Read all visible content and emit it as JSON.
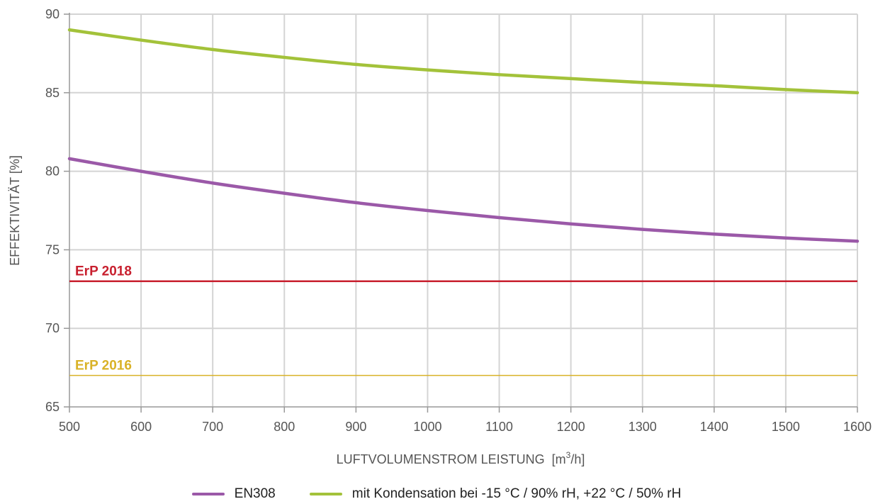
{
  "chart_data": {
    "type": "line",
    "xlabel_main": "LUFTVOLUMENSTROM LEISTUNG",
    "xlabel_unit_prefix": "[m",
    "xlabel_unit_sup": "3",
    "xlabel_unit_suffix": "/h]",
    "ylabel": "EFFEKTIVITÄT [%]",
    "xlim": [
      500,
      1600
    ],
    "ylim": [
      65,
      90
    ],
    "xticks": [
      500,
      600,
      700,
      800,
      900,
      1000,
      1100,
      1200,
      1300,
      1400,
      1500,
      1600
    ],
    "yticks": [
      65,
      70,
      75,
      80,
      85,
      90
    ],
    "grid": true,
    "legend_position": "bottom-center",
    "x": [
      500,
      600,
      700,
      800,
      900,
      1000,
      1100,
      1200,
      1300,
      1400,
      1500,
      1600
    ],
    "series": [
      {
        "name": "EN308",
        "color": "#9b59a8",
        "values": [
          80.8,
          80.0,
          79.25,
          78.6,
          78.0,
          77.5,
          77.05,
          76.65,
          76.3,
          76.0,
          75.75,
          75.55
        ]
      },
      {
        "name": "mit Kondensation bei -15 °C / 90% rH, +22 °C / 50% rH",
        "color": "#a3c23a",
        "values": [
          89.0,
          88.35,
          87.75,
          87.25,
          86.8,
          86.45,
          86.15,
          85.9,
          85.65,
          85.45,
          85.2,
          85.0
        ]
      }
    ],
    "reference_lines": [
      {
        "label": "ErP 2018",
        "y": 73,
        "color": "#c8202f"
      },
      {
        "label": "ErP 2016",
        "y": 67,
        "color": "#d9b227"
      }
    ]
  }
}
